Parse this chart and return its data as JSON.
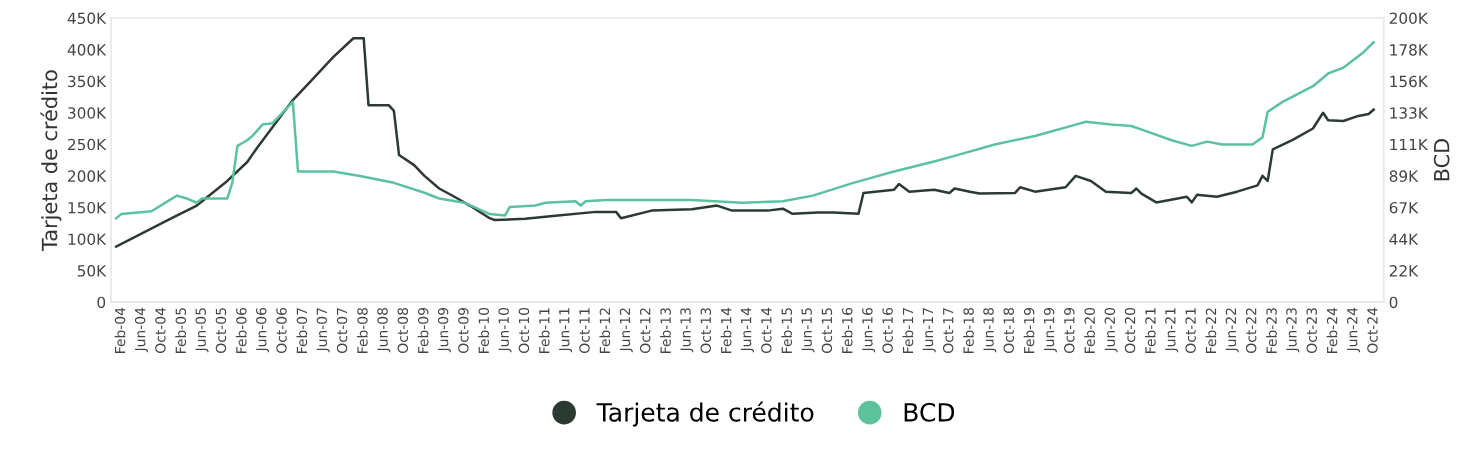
{
  "chart_data": {
    "type": "line",
    "ylabel": "Tarjeta de crédito",
    "y2label": "BCD",
    "legend": "bottom",
    "grid": false,
    "marker": "none",
    "line_style": "solid",
    "xlim": [
      "2003-12",
      "2024-12"
    ],
    "ylim": [
      0,
      450000
    ],
    "yticks": [
      {
        "value": 0,
        "label": "0"
      },
      {
        "value": 50000,
        "label": "50K"
      },
      {
        "value": 100000,
        "label": "100K"
      },
      {
        "value": 150000,
        "label": "150K"
      },
      {
        "value": 200000,
        "label": "200K"
      },
      {
        "value": 250000,
        "label": "250K"
      },
      {
        "value": 300000,
        "label": "300K"
      },
      {
        "value": 350000,
        "label": "350K"
      },
      {
        "value": 400000,
        "label": "400K"
      },
      {
        "value": 450000,
        "label": "450K"
      }
    ],
    "y2lim": [
      0,
      200000
    ],
    "y2ticks": [
      {
        "value": 0,
        "label": "0"
      },
      {
        "value": 22222,
        "label": "22K"
      },
      {
        "value": 44444,
        "label": "44K"
      },
      {
        "value": 66667,
        "label": "67K"
      },
      {
        "value": 88889,
        "label": "89K"
      },
      {
        "value": 111111,
        "label": "111K"
      },
      {
        "value": 133333,
        "label": "133K"
      },
      {
        "value": 155556,
        "label": "156K"
      },
      {
        "value": 177778,
        "label": "178K"
      },
      {
        "value": 200000,
        "label": "200K"
      }
    ],
    "xticks": [
      {
        "value": "2004-02",
        "label": "Feb-04"
      },
      {
        "value": "2004-06",
        "label": "Jun-04"
      },
      {
        "value": "2004-10",
        "label": "Oct-04"
      },
      {
        "value": "2005-02",
        "label": "Feb-05"
      },
      {
        "value": "2005-06",
        "label": "Jun-05"
      },
      {
        "value": "2005-10",
        "label": "Oct-05"
      },
      {
        "value": "2006-02",
        "label": "Feb-06"
      },
      {
        "value": "2006-06",
        "label": "Jun-06"
      },
      {
        "value": "2006-10",
        "label": "Oct-06"
      },
      {
        "value": "2007-02",
        "label": "Feb-07"
      },
      {
        "value": "2007-06",
        "label": "Jun-07"
      },
      {
        "value": "2007-10",
        "label": "Oct-07"
      },
      {
        "value": "2008-02",
        "label": "Feb-08"
      },
      {
        "value": "2008-06",
        "label": "Jun-08"
      },
      {
        "value": "2008-10",
        "label": "Oct-08"
      },
      {
        "value": "2009-02",
        "label": "Feb-09"
      },
      {
        "value": "2009-06",
        "label": "Jun-09"
      },
      {
        "value": "2009-10",
        "label": "Oct-09"
      },
      {
        "value": "2010-02",
        "label": "Feb-10"
      },
      {
        "value": "2010-06",
        "label": "Jun-10"
      },
      {
        "value": "2010-10",
        "label": "Oct-10"
      },
      {
        "value": "2011-02",
        "label": "Feb-11"
      },
      {
        "value": "2011-06",
        "label": "Jun-11"
      },
      {
        "value": "2011-10",
        "label": "Oct-11"
      },
      {
        "value": "2012-02",
        "label": "Feb-12"
      },
      {
        "value": "2012-06",
        "label": "Jun-12"
      },
      {
        "value": "2012-10",
        "label": "Oct-12"
      },
      {
        "value": "2013-02",
        "label": "Feb-13"
      },
      {
        "value": "2013-06",
        "label": "Jun-13"
      },
      {
        "value": "2013-10",
        "label": "Oct-13"
      },
      {
        "value": "2014-02",
        "label": "Feb-14"
      },
      {
        "value": "2014-06",
        "label": "Jun-14"
      },
      {
        "value": "2014-10",
        "label": "Oct-14"
      },
      {
        "value": "2015-02",
        "label": "Feb-15"
      },
      {
        "value": "2015-06",
        "label": "Jun-15"
      },
      {
        "value": "2015-10",
        "label": "Oct-15"
      },
      {
        "value": "2016-02",
        "label": "Feb-16"
      },
      {
        "value": "2016-06",
        "label": "Jun-16"
      },
      {
        "value": "2016-10",
        "label": "Oct-16"
      },
      {
        "value": "2017-02",
        "label": "Feb-17"
      },
      {
        "value": "2017-06",
        "label": "Jun-17"
      },
      {
        "value": "2017-10",
        "label": "Oct-17"
      },
      {
        "value": "2018-02",
        "label": "Feb-18"
      },
      {
        "value": "2018-06",
        "label": "Jun-18"
      },
      {
        "value": "2018-10",
        "label": "Oct-18"
      },
      {
        "value": "2019-02",
        "label": "Feb-19"
      },
      {
        "value": "2019-06",
        "label": "Jun-19"
      },
      {
        "value": "2019-10",
        "label": "Oct-19"
      },
      {
        "value": "2020-02",
        "label": "Feb-20"
      },
      {
        "value": "2020-06",
        "label": "Jun-20"
      },
      {
        "value": "2020-10",
        "label": "Oct-20"
      },
      {
        "value": "2021-02",
        "label": "Feb-21"
      },
      {
        "value": "2021-06",
        "label": "Jun-21"
      },
      {
        "value": "2021-10",
        "label": "Oct-21"
      },
      {
        "value": "2022-02",
        "label": "Feb-22"
      },
      {
        "value": "2022-06",
        "label": "Jun-22"
      },
      {
        "value": "2022-10",
        "label": "Oct-22"
      },
      {
        "value": "2023-02",
        "label": "Feb-23"
      },
      {
        "value": "2023-06",
        "label": "Jun-23"
      },
      {
        "value": "2023-10",
        "label": "Oct-23"
      },
      {
        "value": "2024-02",
        "label": "Feb-24"
      },
      {
        "value": "2024-06",
        "label": "Jun-24"
      },
      {
        "value": "2024-10",
        "label": "Oct-24"
      }
    ],
    "series": [
      {
        "name": "Tarjeta de crédito",
        "color": "#2b3b31",
        "x": [
          "2004-01",
          "2004-12",
          "2005-05",
          "2005-11",
          "2006-03",
          "2006-05",
          "2006-12",
          "2007-03",
          "2007-08",
          "2007-12",
          "2008-02",
          "2008-03",
          "2008-07",
          "2008-08",
          "2008-09",
          "2008-12",
          "2009-02",
          "2009-05",
          "2009-08",
          "2009-11",
          "2010-03",
          "2010-04",
          "2010-10",
          "2011-04",
          "2011-12",
          "2012-04",
          "2012-05",
          "2012-11",
          "2013-07",
          "2013-12",
          "2014-03",
          "2014-10",
          "2015-01",
          "2015-03",
          "2015-08",
          "2015-11",
          "2016-04",
          "2016-05",
          "2016-11",
          "2016-12",
          "2017-02",
          "2017-07",
          "2017-10",
          "2017-11",
          "2018-02",
          "2018-04",
          "2018-11",
          "2018-12",
          "2019-03",
          "2019-09",
          "2019-11",
          "2020-02",
          "2020-05",
          "2020-10",
          "2020-11",
          "2020-12",
          "2021-03",
          "2021-09",
          "2021-10",
          "2021-11",
          "2022-03",
          "2022-07",
          "2022-11",
          "2022-12",
          "2023-01",
          "2023-02",
          "2023-06",
          "2023-10",
          "2023-12",
          "2024-01",
          "2024-04",
          "2024-07",
          "2024-09",
          "2024-10"
        ],
        "values": [
          88000,
          133000,
          153000,
          192000,
          222000,
          245000,
          320000,
          345000,
          388000,
          418000,
          418000,
          312000,
          312000,
          303000,
          233000,
          217000,
          200000,
          180000,
          167000,
          153000,
          133000,
          130000,
          132000,
          137000,
          143000,
          143000,
          133000,
          145000,
          147000,
          153000,
          145000,
          145000,
          148000,
          140000,
          142000,
          142000,
          140000,
          173000,
          178000,
          187000,
          175000,
          178000,
          173000,
          180000,
          175000,
          172000,
          173000,
          182000,
          175000,
          182000,
          200000,
          192000,
          175000,
          173000,
          180000,
          172000,
          158000,
          167000,
          158000,
          170000,
          167000,
          175000,
          185000,
          200000,
          192000,
          242000,
          257000,
          275000,
          300000,
          288000,
          287000,
          295000,
          298000,
          305000
        ]
      },
      {
        "name": "BCD",
        "color": "#5cc29c",
        "axis": "y2",
        "x": [
          "2004-01",
          "2004-02",
          "2004-08",
          "2005-01",
          "2005-03",
          "2005-05",
          "2005-06",
          "2005-11",
          "2005-12",
          "2006-01",
          "2006-03",
          "2006-04",
          "2006-06",
          "2006-08",
          "2006-12",
          "2007-01",
          "2007-08",
          "2008-01",
          "2008-08",
          "2009-02",
          "2009-05",
          "2009-10",
          "2010-03",
          "2010-06",
          "2010-07",
          "2010-12",
          "2011-02",
          "2011-08",
          "2011-09",
          "2011-10",
          "2012-02",
          "2012-10",
          "2013-07",
          "2014-05",
          "2015-01",
          "2015-07",
          "2016-03",
          "2016-11",
          "2017-07",
          "2017-11",
          "2018-07",
          "2019-03",
          "2019-11",
          "2020-01",
          "2020-06",
          "2020-10",
          "2021-02",
          "2021-06",
          "2021-10",
          "2022-01",
          "2022-04",
          "2022-10",
          "2022-12",
          "2023-01",
          "2023-04",
          "2023-10",
          "2024-01",
          "2024-04",
          "2024-08",
          "2024-10"
        ],
        "values": [
          59000,
          62000,
          64000,
          75000,
          73000,
          70000,
          73000,
          73000,
          84000,
          110000,
          114000,
          117000,
          125000,
          126000,
          141000,
          92000,
          92000,
          89000,
          84000,
          77000,
          73000,
          70000,
          62000,
          61000,
          67000,
          68000,
          70000,
          71000,
          68000,
          71000,
          72000,
          72000,
          72000,
          70000,
          71000,
          75000,
          84000,
          92000,
          99000,
          103000,
          111000,
          117000,
          125000,
          127000,
          125000,
          124000,
          119000,
          114000,
          110000,
          113000,
          111000,
          111000,
          116000,
          134000,
          141000,
          152000,
          161000,
          165000,
          176000,
          183000
        ]
      }
    ]
  }
}
